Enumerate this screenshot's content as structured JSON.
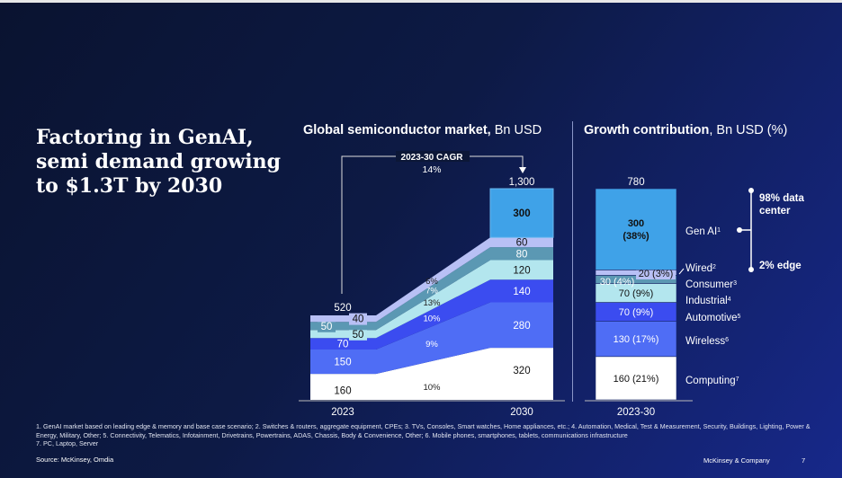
{
  "title": "Factoring in GenAI, semi demand growing to $1.3T by 2030",
  "colors": {
    "Computing": "#ffffff",
    "Wireless": "#4f6df5",
    "Automotive": "#3b4cf0",
    "Industrial": "#b3e6ee",
    "Consumer": "#5b98b3",
    "Wired": "#b8c0f5",
    "Gen AI": "#3fa2e8"
  },
  "chart_data": [
    {
      "type": "area",
      "title_bold": "Global semiconductor market,",
      "title_rest": " Bn USD",
      "categories": [
        "2023",
        "2030"
      ],
      "series": [
        {
          "name": "Computing",
          "values": [
            160,
            320
          ],
          "cagr": "10%"
        },
        {
          "name": "Wireless",
          "values": [
            150,
            280
          ],
          "cagr": "9%"
        },
        {
          "name": "Automotive",
          "values": [
            70,
            140
          ],
          "cagr": "10%"
        },
        {
          "name": "Industrial",
          "values": [
            50,
            120
          ],
          "cagr": "13%"
        },
        {
          "name": "Consumer",
          "values": [
            50,
            80
          ],
          "cagr": "7%"
        },
        {
          "name": "Wired",
          "values": [
            40,
            60
          ],
          "cagr": "6%"
        },
        {
          "name": "Gen AI",
          "values": [
            null,
            300
          ]
        }
      ],
      "totals": [
        "520",
        "1,300"
      ],
      "value_labels": {
        "2023": [
          "160",
          "150",
          "70",
          "50",
          "50",
          "40"
        ],
        "2030": [
          "320",
          "280",
          "140",
          "120",
          "80",
          "60",
          "300"
        ]
      },
      "cagr_label": "2023-30 CAGR",
      "cagr_value": "14%",
      "ylim": [
        0,
        1300
      ]
    },
    {
      "type": "bar",
      "title_bold": "Growth contribution",
      "title_rest": ", Bn USD (%)",
      "categories": [
        "2023-30"
      ],
      "series": [
        {
          "name": "Computing",
          "sup": "7",
          "value": 160,
          "label": "160 (21%)"
        },
        {
          "name": "Wireless",
          "sup": "6",
          "value": 130,
          "label": "130 (17%)"
        },
        {
          "name": "Automotive",
          "sup": "5",
          "value": 70,
          "label": "70 (9%)"
        },
        {
          "name": "Industrial",
          "sup": "4",
          "value": 70,
          "label": "70 (9%)"
        },
        {
          "name": "Consumer",
          "sup": "3",
          "value": 30,
          "label": "30 (4%)"
        },
        {
          "name": "Wired",
          "sup": "2",
          "value": 20,
          "label": "20 (3%)"
        },
        {
          "name": "Gen AI",
          "sup": "1",
          "value": 300,
          "label": "300 (38%)"
        }
      ],
      "total": "780",
      "genai_split": {
        "top": "98% data center",
        "bottom": "2% edge"
      }
    }
  ],
  "footnotes": "1. GenAI market based on leading edge & memory and base case scenario; 2. Switches & routers, aggregate equipment, CPEs; 3. TVs, Consoles, Smart watches, Home appliances, etc.; 4. Automation, Medical, Test & Measurement, Security, Buildings, Lighting, Power & Energy, Military, Other; 5. Connectivity, Telematics, Infotainment, Drivetrains, Powertrains, ADAS, Chassis, Body & Convenience, Other; 6. Mobile phones, smartphones, tablets, communications infrastructure",
  "footnote7": "7. PC, Laptop, Server",
  "source": "Source: McKinsey, Omdia",
  "brand": "McKinsey & Company",
  "page": "7"
}
